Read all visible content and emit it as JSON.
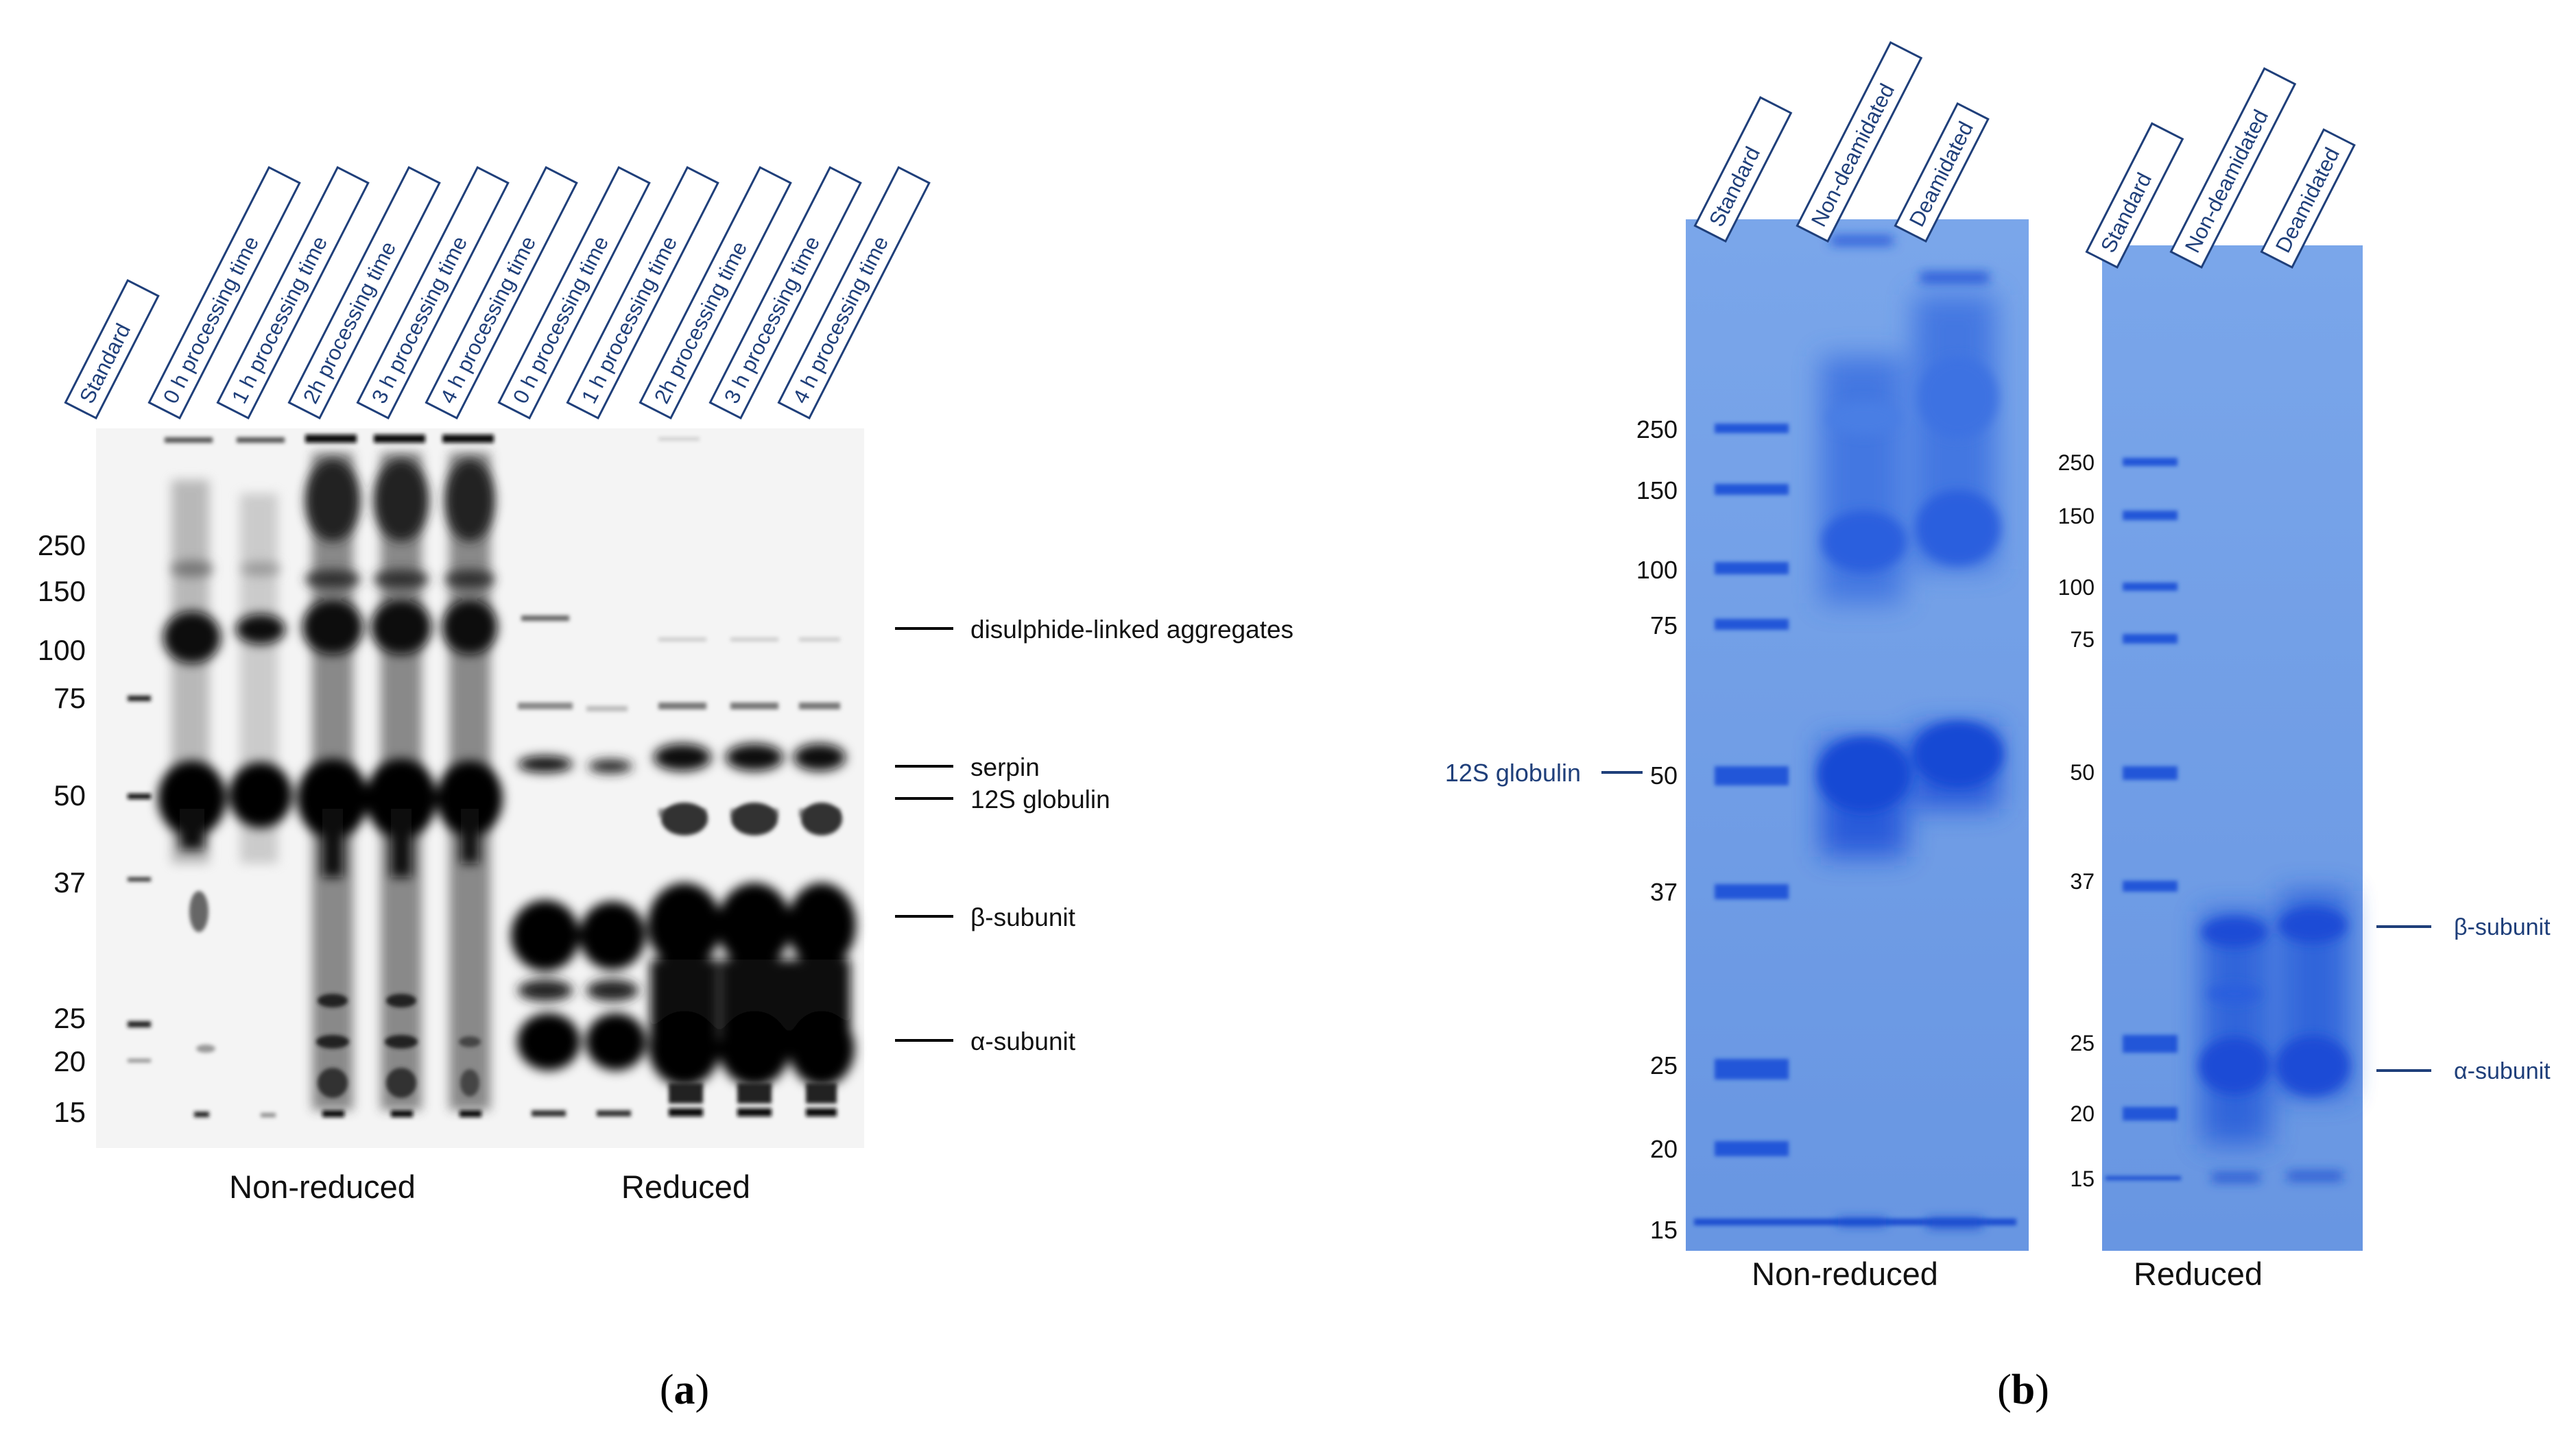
{
  "panel_a": {
    "caption": {
      "open": "(",
      "letter": "a",
      "close": ")"
    },
    "lanes": [
      "Standard",
      "0 h processing time",
      "1 h processing time",
      "2h processing time",
      "3 h processing time",
      "4 h processing time",
      "0 h processing time",
      "1 h processing time",
      "2h processing time",
      "3 h processing time",
      "4 h processing time"
    ],
    "markers": [
      "250",
      "150",
      "100",
      "75",
      "50",
      "37",
      "25",
      "20",
      "15"
    ],
    "annotations": [
      "disulphide-linked aggregates",
      "serpin",
      "12S globulin",
      "β-subunit",
      "α-subunit"
    ],
    "group_labels": [
      "Non-reduced",
      "Reduced"
    ],
    "colors": {
      "label": "#1f3f7a",
      "ink": "#000000",
      "gel": "#f4f4f4"
    }
  },
  "panel_b": {
    "caption": {
      "open": "(",
      "letter": "b",
      "close": ")"
    },
    "gel1": {
      "lanes": [
        "Standard",
        "Non-deamidated",
        "Deamidated"
      ],
      "markers": [
        "250",
        "150",
        "100",
        "75",
        "50",
        "37",
        "25",
        "20",
        "15"
      ],
      "annotation": "12S globulin",
      "label": "Non-reduced"
    },
    "gel2": {
      "lanes": [
        "Standard",
        "Non-deamidated",
        "Deamidated"
      ],
      "markers": [
        "250",
        "150",
        "100",
        "75",
        "50",
        "37",
        "25",
        "20",
        "15"
      ],
      "annotations": [
        "β-subunit",
        "α-subunit"
      ],
      "label": "Reduced"
    },
    "colors": {
      "gel": "#6f9ce6",
      "band": "#1e52d6",
      "annotation": "#1f3f7a"
    }
  }
}
